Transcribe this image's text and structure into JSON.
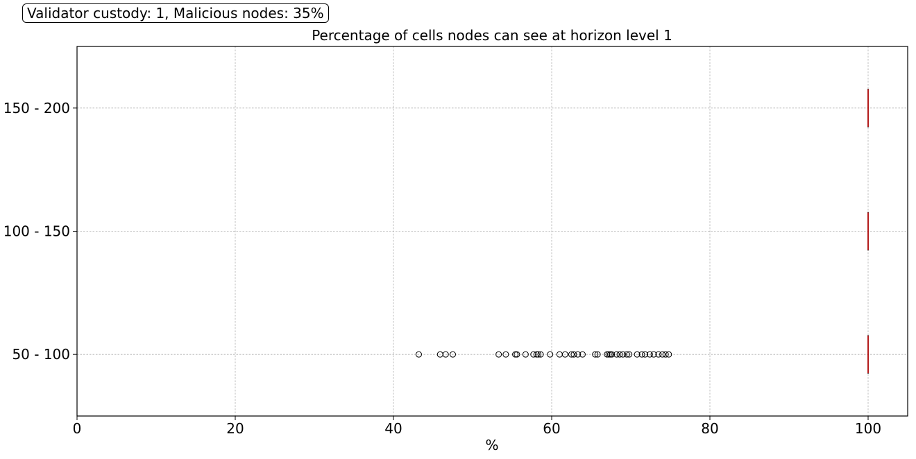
{
  "chart_data": {
    "type": "box",
    "orientation": "horizontal",
    "title": "Percentage of cells nodes can see at horizon level 1",
    "annotation": "Validator custody: 1, Malicious nodes: 35%",
    "xlabel": "%",
    "ylabel": "",
    "xlim": [
      0,
      105
    ],
    "x_ticks": [
      0,
      20,
      40,
      60,
      80,
      100
    ],
    "grid": true,
    "median_color": "#c00000",
    "outlier_color": "#000000",
    "categories": [
      "50 - 100",
      "100 - 150",
      "150 - 200"
    ],
    "boxes": [
      {
        "category": "50 - 100",
        "median": 100,
        "q1": 100,
        "q3": 100,
        "whisker_low": 100,
        "whisker_high": 100,
        "outliers": [
          43.2,
          45.9,
          46.6,
          47.5,
          53.3,
          54.2,
          55.4,
          55.6,
          56.7,
          57.7,
          58.1,
          58.3,
          58.6,
          59.8,
          61.0,
          61.7,
          62.5,
          62.8,
          63.3,
          63.9,
          65.5,
          65.8,
          67.0,
          67.2,
          67.4,
          67.6,
          68.2,
          68.6,
          69.0,
          69.5,
          69.8,
          70.8,
          71.4,
          71.8,
          72.4,
          72.9,
          73.5,
          74.0,
          74.4,
          74.8
        ]
      },
      {
        "category": "100 - 150",
        "median": 100,
        "q1": 100,
        "q3": 100,
        "whisker_low": 100,
        "whisker_high": 100,
        "outliers": []
      },
      {
        "category": "150 - 200",
        "median": 100,
        "q1": 100,
        "q3": 100,
        "whisker_low": 100,
        "whisker_high": 100,
        "outliers": []
      }
    ]
  }
}
